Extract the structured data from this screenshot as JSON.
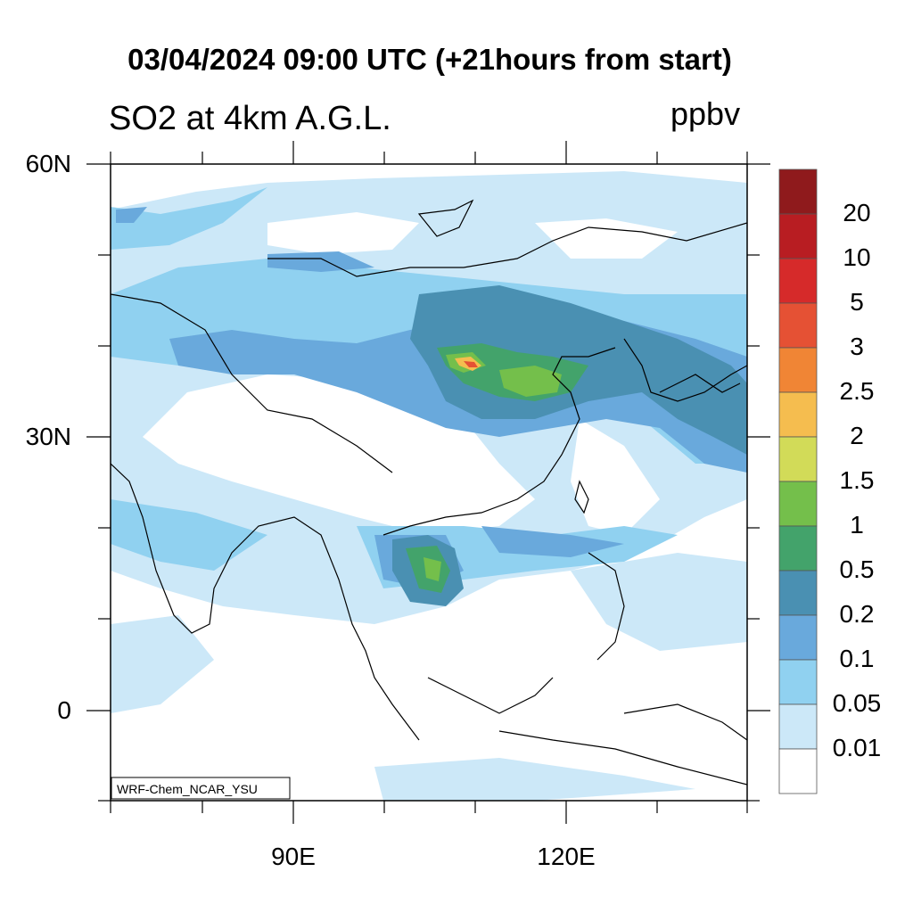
{
  "header": {
    "title": "03/04/2024 09:00 UTC (+21hours from start)",
    "variable": "SO2 at 4km A.G.L.",
    "units": "ppbv"
  },
  "map": {
    "lat_labels": [
      "60N",
      "30N",
      "0"
    ],
    "lon_labels": [
      "90E",
      "120E"
    ],
    "credit": "WRF-Chem_NCAR_YSU"
  },
  "colorbar": {
    "labels": [
      "20",
      "10",
      "5",
      "3",
      "2.5",
      "2",
      "1.5",
      "1",
      "0.5",
      "0.2",
      "0.1",
      "0.05",
      "0.01"
    ],
    "colors": [
      "#8f1a1c",
      "#b81d22",
      "#d62a2a",
      "#e55134",
      "#f08535",
      "#f5bd4f",
      "#d2db58",
      "#74bf4b",
      "#43a36b",
      "#4a90b2",
      "#69a9dc",
      "#90d1f0",
      "#cce8f8",
      "#ffffff"
    ]
  }
}
